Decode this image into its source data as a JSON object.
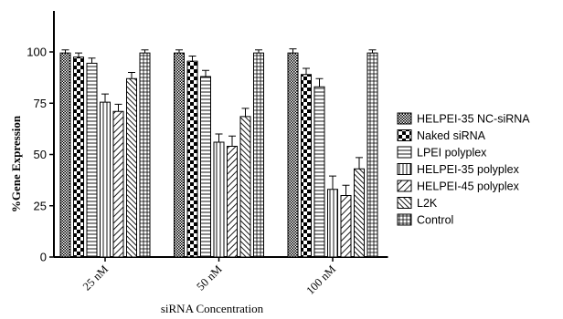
{
  "chart_data": {
    "type": "bar",
    "title": "",
    "xlabel": "siRNA Concentration",
    "ylabel": "%Gene Expression",
    "ylim": [
      0,
      125
    ],
    "yticks": [
      0,
      25,
      50,
      75,
      100
    ],
    "categories": [
      "25 nM",
      "50 nM",
      "100 nM"
    ],
    "legend_position": "right",
    "series": [
      {
        "name": " HELPEI-35 NC-siRNA",
        "pattern": "crosshatch-dense",
        "values": [
          99.5,
          99.5,
          99.5
        ],
        "errors": [
          1.5,
          1.5,
          2
        ]
      },
      {
        "name": "Naked siRNA",
        "pattern": "checkerboard",
        "values": [
          97.5,
          95.5,
          89
        ],
        "errors": [
          2,
          2.5,
          3
        ]
      },
      {
        "name": "LPEI polyplex",
        "pattern": "horizontal-lines",
        "values": [
          94.5,
          88,
          83
        ],
        "errors": [
          2.5,
          3,
          4
        ]
      },
      {
        "name": "HELPEI-35 polyplex",
        "pattern": "vertical-lines",
        "values": [
          75.5,
          56,
          33
        ],
        "errors": [
          4,
          4,
          6.5
        ]
      },
      {
        "name": "HELPEI-45 polyplex",
        "pattern": "diagonal-right",
        "values": [
          71,
          54,
          30
        ],
        "errors": [
          3.5,
          5,
          5
        ]
      },
      {
        "name": "L2K",
        "pattern": "diagonal-left",
        "values": [
          87,
          68.5,
          43
        ],
        "errors": [
          3,
          4,
          5.5
        ]
      },
      {
        "name": "Control",
        "pattern": "grid",
        "values": [
          99.5,
          99.5,
          99.5
        ],
        "errors": [
          1.5,
          1.5,
          1.5
        ]
      }
    ]
  }
}
